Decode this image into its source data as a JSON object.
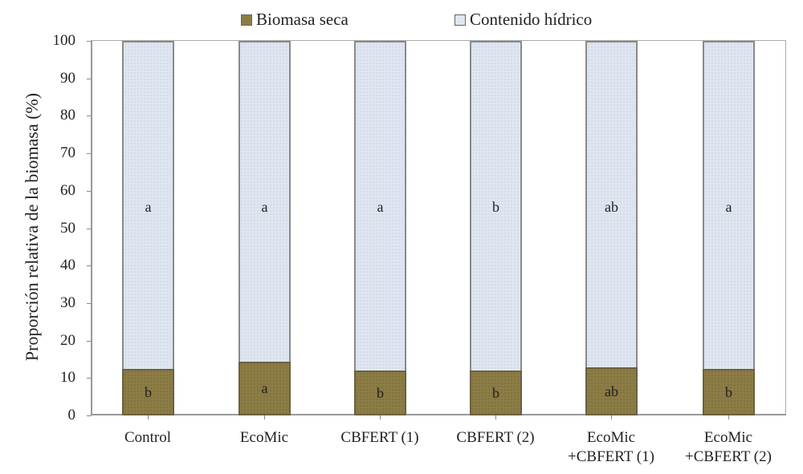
{
  "chart_data": {
    "type": "bar",
    "stacked": true,
    "title": "",
    "xlabel": "",
    "ylabel": "Proporción relativa de la biomasa (%)",
    "ylim": [
      0,
      100
    ],
    "yticks": [
      0,
      10,
      20,
      30,
      40,
      50,
      60,
      70,
      80,
      90,
      100
    ],
    "categories": [
      "Control",
      "EcoMic",
      "CBFERT (1)",
      "CBFERT (2)",
      "EcoMic\n+CBFERT (1)",
      "EcoMic\n+CBFERT (2)"
    ],
    "series": [
      {
        "name": "Biomasa seca",
        "color": "#8c7c45",
        "values": [
          12.4,
          14.4,
          12.0,
          12.0,
          12.8,
          12.4
        ],
        "letters": [
          "b",
          "a",
          "b",
          "b",
          "ab",
          "b"
        ]
      },
      {
        "name": "Contenido hídrico",
        "color": "#dfe6f0",
        "values": [
          87.6,
          85.6,
          88.0,
          88.0,
          87.2,
          87.6
        ],
        "letters": [
          "a",
          "a",
          "a",
          "b",
          "ab",
          "a"
        ]
      }
    ],
    "legend_position": "top",
    "grid": false
  },
  "legend": {
    "items": [
      {
        "label": "Biomasa seca",
        "color": "#8c7c45"
      },
      {
        "label": "Contenido hídrico",
        "color": "#dfe6f0"
      }
    ]
  },
  "axis": {
    "ylabel": "Proporción relativa de la biomasa (%)",
    "yticks": [
      "0",
      "10",
      "20",
      "30",
      "40",
      "50",
      "60",
      "70",
      "80",
      "90",
      "100"
    ]
  },
  "xlabels": [
    {
      "line1": "Control",
      "line2": ""
    },
    {
      "line1": "EcoMic",
      "line2": ""
    },
    {
      "line1": "CBFERT (1)",
      "line2": ""
    },
    {
      "line1": "CBFERT (2)",
      "line2": ""
    },
    {
      "line1": "EcoMic",
      "line2": "+CBFERT (1)"
    },
    {
      "line1": "EcoMic",
      "line2": "+CBFERT (2)"
    }
  ]
}
